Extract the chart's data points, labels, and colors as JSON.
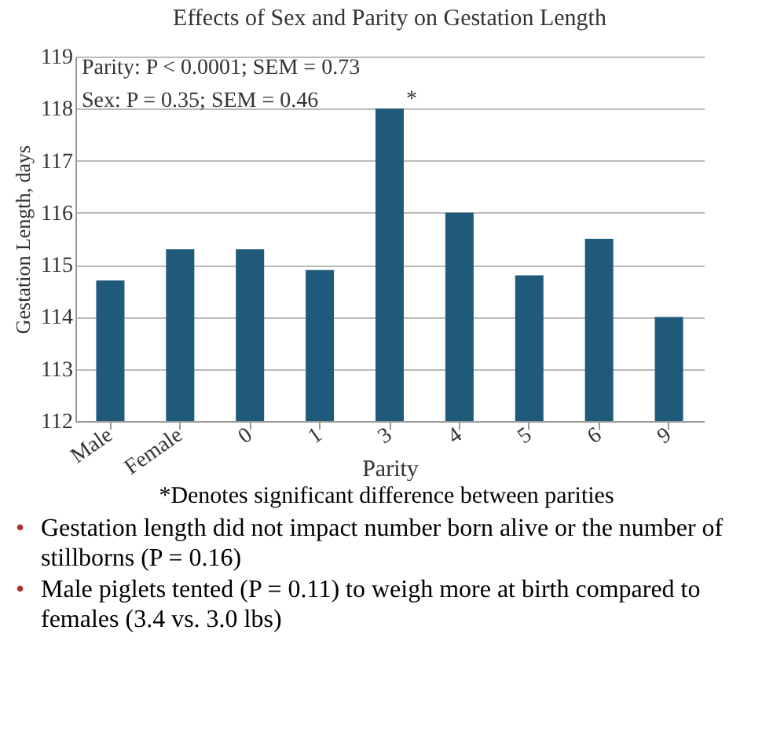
{
  "chart_data": {
    "type": "bar",
    "title": "Effects of Sex and Parity on Gestation Length",
    "xlabel": "Parity",
    "ylabel": "Gestation Length, days",
    "categories": [
      "Male",
      "Female",
      "0",
      "1",
      "3",
      "4",
      "5",
      "6",
      "9"
    ],
    "values": [
      114.7,
      115.3,
      115.3,
      114.9,
      118,
      116,
      114.8,
      115.5,
      114
    ],
    "color": "#1f5a7a",
    "ylim": [
      112,
      119
    ],
    "yticks": [
      112,
      113,
      114,
      115,
      116,
      117,
      118,
      119
    ],
    "grid": "y",
    "annotations": [
      "Parity: P < 0.0001; SEM = 0.73",
      "Sex: P = 0.35; SEM = 0.46",
      {
        "text": "*",
        "x": "3",
        "y": 118
      },
      "*Denotes significant difference between parities",
      "• Gestation length did not impact number born alive or the number of stillborns (P = 0.16)",
      "• Male piglets tented (P = 0.11) to weigh more at birth compared to females (3.4 vs. 3.0 lbs)"
    ]
  }
}
